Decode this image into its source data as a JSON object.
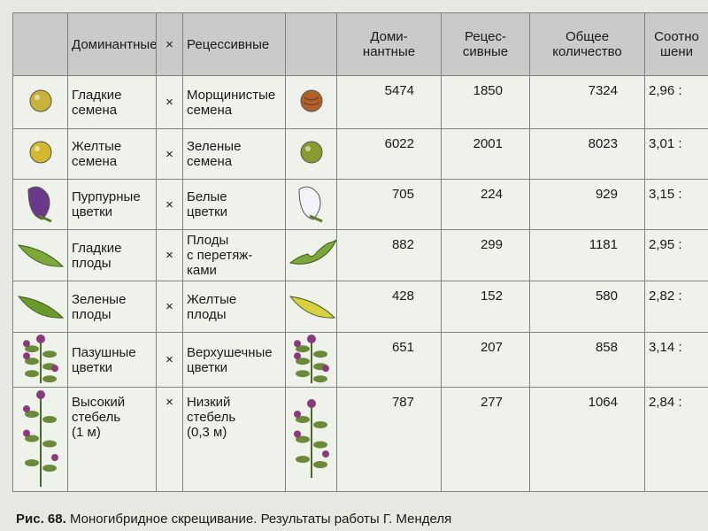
{
  "header": [
    "Доминантные",
    "×",
    "Рецессивные",
    "Доми-\nнантные",
    "Рецес-\nсивные",
    "Общее\nколичество",
    "Соотно\nшени"
  ],
  "table": {
    "rows": [
      [
        "Гладкие\nсемена",
        "×",
        "Морщинистые\nсемена",
        5474,
        1850,
        7324,
        "2,96 :"
      ],
      [
        "Желтые\nсемена",
        "×",
        "Зеленые\nсемена",
        6022,
        2001,
        8023,
        "3,01 :"
      ],
      [
        "Пурпурные\nцветки",
        "×",
        "Белые\nцветки",
        705,
        224,
        929,
        "3,15 :"
      ],
      [
        "Гладкие\nплоды",
        "×",
        "Плоды\nс перетяж-\nками",
        882,
        299,
        1181,
        "2,95 :"
      ],
      [
        "Зеленые\nплоды",
        "×",
        "Желтые\nплоды",
        428,
        152,
        580,
        "2,82 :"
      ],
      [
        "Пазушные\nцветки",
        "×",
        "Верхушечные\nцветки",
        651,
        207,
        858,
        "3,14 :"
      ],
      [
        "Высокий\nстебель\n(1 м)",
        "×",
        "Низкий\nстебель\n(0,3 м)",
        787,
        277,
        1064,
        "2,84 :"
      ]
    ]
  },
  "caption": {
    "label": "Рис. 68.",
    "text": "Моногибридное скрещивание. Результаты работы Г. Менделя"
  }
}
